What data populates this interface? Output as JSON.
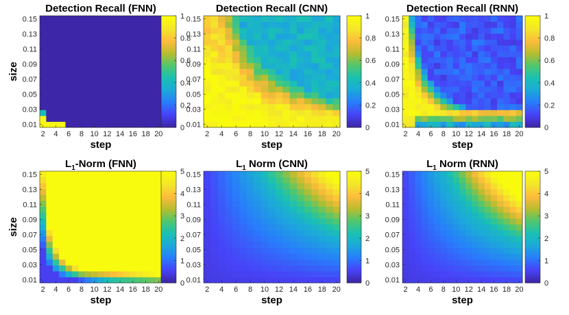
{
  "figure": {
    "background": "#ffffff"
  },
  "colormap": [
    "#3e26a8",
    "#4743f8",
    "#287dfb",
    "#1ca9d9",
    "#1ac0b3",
    "#50c76e",
    "#b7bd2f",
    "#fdbc3c",
    "#f3e62a",
    "#f9fb0e"
  ],
  "chart_data": [
    {
      "type": "heatmap",
      "title": "Detection Recall (FNN)",
      "title_parts": [
        {
          "text": "Detection Recall (FNN)",
          "sub": false
        }
      ],
      "xlabel": "step",
      "ylabel": "size",
      "xticks": [
        "2",
        "4",
        "6",
        "8",
        "10",
        "12",
        "14",
        "16",
        "18",
        "20"
      ],
      "yticks": [
        "0.01",
        "0.03",
        "0.05",
        "0.07",
        "0.09",
        "0.11",
        "0.13",
        "0.15"
      ],
      "x_range": [
        2,
        20
      ],
      "y_range": [
        0.01,
        0.15
      ],
      "clim": [
        0,
        1
      ],
      "colorbar_ticks": [
        "0",
        "0.2",
        "0.4",
        "0.6",
        "0.8",
        "1"
      ],
      "model": "FNN",
      "metric": "recall"
    },
    {
      "type": "heatmap",
      "title": "Detection Recall (CNN)",
      "title_parts": [
        {
          "text": "Detection Recall (CNN)",
          "sub": false
        }
      ],
      "xlabel": "step",
      "ylabel": "",
      "xticks": [
        "2",
        "4",
        "6",
        "8",
        "10",
        "12",
        "14",
        "16",
        "18",
        "20"
      ],
      "yticks": [
        "0.01",
        "0.03",
        "0.05",
        "0.07",
        "0.09",
        "0.11",
        "0.13",
        "0.15"
      ],
      "x_range": [
        2,
        20
      ],
      "y_range": [
        0.01,
        0.15
      ],
      "clim": [
        0,
        1
      ],
      "colorbar_ticks": [
        "0",
        "0.2",
        "0.4",
        "0.6",
        "0.8",
        "1"
      ],
      "model": "CNN",
      "metric": "recall"
    },
    {
      "type": "heatmap",
      "title": "Detection Recall (RNN)",
      "title_parts": [
        {
          "text": "Detection Recall (RNN)",
          "sub": false
        }
      ],
      "xlabel": "step",
      "ylabel": "",
      "xticks": [
        "2",
        "4",
        "6",
        "8",
        "10",
        "12",
        "14",
        "16",
        "18",
        "20"
      ],
      "yticks": [
        "0.01",
        "0.03",
        "0.05",
        "0.07",
        "0.09",
        "0.11",
        "0.13",
        "0.15"
      ],
      "x_range": [
        2,
        20
      ],
      "y_range": [
        0.01,
        0.15
      ],
      "clim": [
        0,
        1
      ],
      "colorbar_ticks": [
        "0",
        "0.2",
        "0.4",
        "0.6",
        "0.8",
        "1"
      ],
      "model": "RNN",
      "metric": "recall"
    },
    {
      "type": "heatmap",
      "title": "L1-Norm (FNN)",
      "title_parts": [
        {
          "text": "L",
          "sub": false
        },
        {
          "text": "1",
          "sub": true
        },
        {
          "text": "-Norm (FNN)",
          "sub": false
        }
      ],
      "xlabel": "step",
      "ylabel": "size",
      "xticks": [
        "2",
        "4",
        "6",
        "8",
        "10",
        "12",
        "14",
        "16",
        "18",
        "20"
      ],
      "yticks": [
        "0.01",
        "0.03",
        "0.05",
        "0.07",
        "0.09",
        "0.11",
        "0.13",
        "0.15"
      ],
      "x_range": [
        2,
        20
      ],
      "y_range": [
        0.01,
        0.15
      ],
      "clim": [
        0,
        5
      ],
      "colorbar_ticks": [
        "0",
        "1",
        "2",
        "3",
        "4",
        "5"
      ],
      "model": "FNN",
      "metric": "l1"
    },
    {
      "type": "heatmap",
      "title": "L1 Norm (CNN)",
      "title_parts": [
        {
          "text": "L",
          "sub": false
        },
        {
          "text": "1",
          "sub": true
        },
        {
          "text": " Norm (CNN)",
          "sub": false
        }
      ],
      "xlabel": "step",
      "ylabel": "",
      "xticks": [
        "2",
        "4",
        "6",
        "8",
        "10",
        "12",
        "14",
        "16",
        "18",
        "20"
      ],
      "yticks": [
        "0.01",
        "0.03",
        "0.05",
        "0.07",
        "0.09",
        "0.11",
        "0.13",
        "0.15"
      ],
      "x_range": [
        2,
        20
      ],
      "y_range": [
        0.01,
        0.15
      ],
      "clim": [
        0,
        5
      ],
      "colorbar_ticks": [
        "0",
        "1",
        "2",
        "3",
        "4",
        "5"
      ],
      "model": "CNN",
      "metric": "l1"
    },
    {
      "type": "heatmap",
      "title": "L1 Norm (RNN)",
      "title_parts": [
        {
          "text": "L",
          "sub": false
        },
        {
          "text": "1",
          "sub": true
        },
        {
          "text": " Norm (RNN)",
          "sub": false
        }
      ],
      "xlabel": "step",
      "ylabel": "",
      "xticks": [
        "2",
        "4",
        "6",
        "8",
        "10",
        "12",
        "14",
        "16",
        "18",
        "20"
      ],
      "yticks": [
        "0.01",
        "0.03",
        "0.05",
        "0.07",
        "0.09",
        "0.11",
        "0.13",
        "0.15"
      ],
      "x_range": [
        2,
        20
      ],
      "y_range": [
        0.01,
        0.15
      ],
      "clim": [
        0,
        5
      ],
      "colorbar_ticks": [
        "0",
        "1",
        "2",
        "3",
        "4",
        "5"
      ],
      "model": "RNN",
      "metric": "l1"
    }
  ]
}
